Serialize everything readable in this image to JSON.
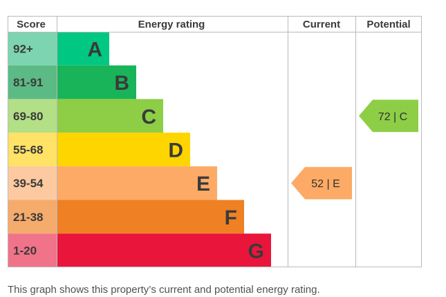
{
  "chart_data": {
    "type": "table",
    "headers": {
      "score": "Score",
      "rating": "Energy rating",
      "current": "Current",
      "potential": "Potential"
    },
    "bands": [
      {
        "score": "92+",
        "letter": "A",
        "color": "#00c781",
        "score_bg": "#7dd4b0"
      },
      {
        "score": "81-91",
        "letter": "B",
        "color": "#19b459",
        "score_bg": "#5cba85"
      },
      {
        "score": "69-80",
        "letter": "C",
        "color": "#8dce46",
        "score_bg": "#b3df86"
      },
      {
        "score": "55-68",
        "letter": "D",
        "color": "#ffd500",
        "score_bg": "#ffe266"
      },
      {
        "score": "39-54",
        "letter": "E",
        "color": "#fcaa65",
        "score_bg": "#fdc9a0"
      },
      {
        "score": "21-38",
        "letter": "F",
        "color": "#ef8023",
        "score_bg": "#f4ab6c"
      },
      {
        "score": "1-20",
        "letter": "G",
        "color": "#e9153b",
        "score_bg": "#f07389"
      }
    ],
    "current": {
      "value": 52,
      "band": "E",
      "label": "52 | E",
      "color": "#fcaa65"
    },
    "potential": {
      "value": 72,
      "band": "C",
      "label": "72 | C",
      "color": "#8dce46"
    }
  },
  "caption": "This graph shows this property’s current and potential energy rating."
}
